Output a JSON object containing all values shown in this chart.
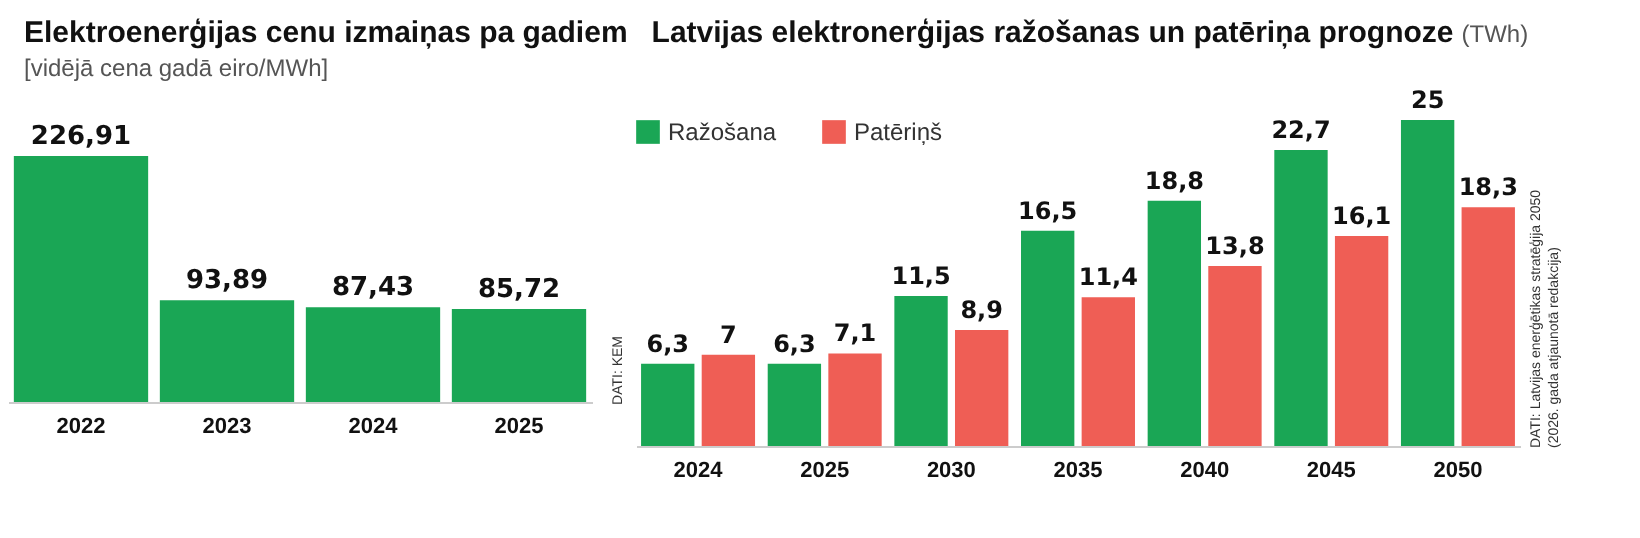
{
  "chart_data": [
    {
      "type": "bar",
      "title": "Elektroenerģijas cenu izmaiņas pa gadiem",
      "subtitle": "[vidējā cena gadā eiro/MWh]",
      "categories": [
        "2022",
        "2023",
        "2024",
        "2025"
      ],
      "values": [
        226.91,
        93.89,
        87.43,
        85.72
      ],
      "color": "#1aa655",
      "value_labels": [
        "226,91",
        "93,89",
        "87,43",
        "85,72"
      ],
      "annotations": [
        "DATI: KEM"
      ]
    },
    {
      "type": "bar",
      "title": "Latvijas elektronerģijas ražošanas un patēriņa prognoze",
      "subtitle": "(TWh)",
      "categories": [
        "2024",
        "2025",
        "2030",
        "2035",
        "2040",
        "2045",
        "2050"
      ],
      "series": [
        {
          "name": "Ražošana",
          "color": "#1aa655",
          "values": [
            6.3,
            6.3,
            11.5,
            16.5,
            18.8,
            22.7,
            25
          ],
          "value_labels": [
            "6,3",
            "6,3",
            "11,5",
            "16,5",
            "18,8",
            "22,7",
            "25"
          ]
        },
        {
          "name": "Patēriņš",
          "color": "#ef5e55",
          "values": [
            7,
            7.1,
            8.9,
            11.4,
            13.8,
            16.1,
            18.3
          ],
          "value_labels": [
            "7",
            "7,1",
            "8,9",
            "11,4",
            "13,8",
            "16,1",
            "18,3"
          ]
        }
      ],
      "legend": "top left",
      "annotations": [
        "DATI: Latvijas enerģētikas stratēģija 2050 (2026. gada atjaunotā redakcija)"
      ]
    }
  ]
}
